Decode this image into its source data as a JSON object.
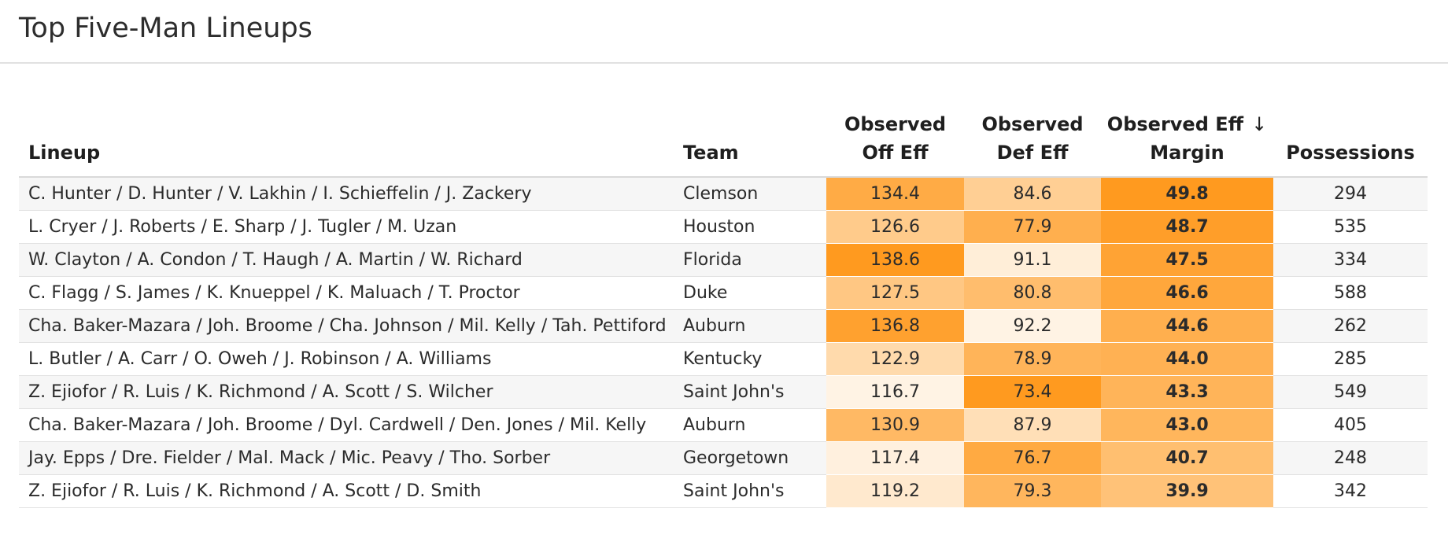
{
  "page": {
    "title": "Top Five-Man Lineups"
  },
  "table": {
    "columns": {
      "lineup": "Lineup",
      "team": "Team",
      "off_eff_line1": "Observed",
      "off_eff_line2": "Off Eff",
      "def_eff_line1": "Observed",
      "def_eff_line2": "Def Eff",
      "margin_line1": "Observed Eff",
      "margin_line2": "Margin",
      "possessions": "Possessions",
      "sort_indicator": "↓"
    },
    "sorted_by": "Observed Eff Margin",
    "sort_direction": "descending",
    "heat_colors": {
      "low": "#fff3e4",
      "high": "#ff9a1f"
    },
    "rows": [
      {
        "lineup": "C. Hunter / D. Hunter / V. Lakhin / I. Schieffelin / J. Zackery",
        "team": "Clemson",
        "off_eff": "134.4",
        "def_eff": "84.6",
        "margin": "49.8",
        "possessions": "294"
      },
      {
        "lineup": "L. Cryer / J. Roberts / E. Sharp / J. Tugler / M. Uzan",
        "team": "Houston",
        "off_eff": "126.6",
        "def_eff": "77.9",
        "margin": "48.7",
        "possessions": "535"
      },
      {
        "lineup": "W. Clayton / A. Condon / T. Haugh / A. Martin / W. Richard",
        "team": "Florida",
        "off_eff": "138.6",
        "def_eff": "91.1",
        "margin": "47.5",
        "possessions": "334"
      },
      {
        "lineup": "C. Flagg / S. James / K. Knueppel / K. Maluach / T. Proctor",
        "team": "Duke",
        "off_eff": "127.5",
        "def_eff": "80.8",
        "margin": "46.6",
        "possessions": "588"
      },
      {
        "lineup": "Cha. Baker-Mazara / Joh. Broome / Cha. Johnson / Mil. Kelly / Tah. Pettiford",
        "team": "Auburn",
        "off_eff": "136.8",
        "def_eff": "92.2",
        "margin": "44.6",
        "possessions": "262"
      },
      {
        "lineup": "L. Butler / A. Carr / O. Oweh / J. Robinson / A. Williams",
        "team": "Kentucky",
        "off_eff": "122.9",
        "def_eff": "78.9",
        "margin": "44.0",
        "possessions": "285"
      },
      {
        "lineup": "Z. Ejiofor / R. Luis / K. Richmond / A. Scott / S. Wilcher",
        "team": "Saint John's",
        "off_eff": "116.7",
        "def_eff": "73.4",
        "margin": "43.3",
        "possessions": "549"
      },
      {
        "lineup": "Cha. Baker-Mazara / Joh. Broome / Dyl. Cardwell / Den. Jones / Mil. Kelly",
        "team": "Auburn",
        "off_eff": "130.9",
        "def_eff": "87.9",
        "margin": "43.0",
        "possessions": "405"
      },
      {
        "lineup": "Jay. Epps / Dre. Fielder / Mal. Mack / Mic. Peavy / Tho. Sorber",
        "team": "Georgetown",
        "off_eff": "117.4",
        "def_eff": "76.7",
        "margin": "40.7",
        "possessions": "248"
      },
      {
        "lineup": "Z. Ejiofor / R. Luis / K. Richmond / A. Scott / D. Smith",
        "team": "Saint John's",
        "off_eff": "119.2",
        "def_eff": "79.3",
        "margin": "39.9",
        "possessions": "342"
      }
    ]
  }
}
